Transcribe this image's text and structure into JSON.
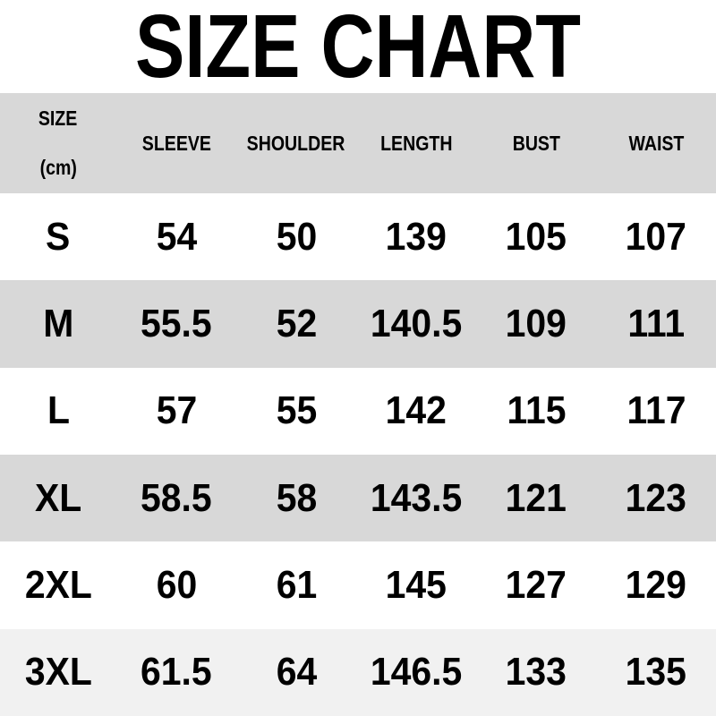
{
  "title": "SIZE CHART",
  "table": {
    "size_label": "SIZE",
    "unit_note": "(cm)",
    "columns": [
      "SLEEVE",
      "SHOULDER",
      "LENGTH",
      "BUST",
      "WAIST"
    ],
    "rows": [
      {
        "size": "S",
        "values": [
          "54",
          "50",
          "139",
          "105",
          "107"
        ]
      },
      {
        "size": "M",
        "values": [
          "55.5",
          "52",
          "140.5",
          "109",
          "111"
        ]
      },
      {
        "size": "L",
        "values": [
          "57",
          "55",
          "142",
          "115",
          "117"
        ]
      },
      {
        "size": "XL",
        "values": [
          "58.5",
          "58",
          "143.5",
          "121",
          "123"
        ]
      },
      {
        "size": "2XL",
        "values": [
          "60",
          "61",
          "145",
          "127",
          "129"
        ]
      },
      {
        "size": "3XL",
        "values": [
          "61.5",
          "64",
          "146.5",
          "133",
          "135"
        ]
      }
    ]
  },
  "colors": {
    "header_bg": "#d8d8d8",
    "alt_row_bg": "#d8d8d8",
    "row_bg": "#ffffff",
    "last_row_bg": "#f1f1f1",
    "text": "#000000"
  },
  "chart_data": {
    "type": "table",
    "title": "SIZE CHART",
    "unit": "cm",
    "columns": [
      "SIZE",
      "SLEEVE",
      "SHOULDER",
      "LENGTH",
      "BUST",
      "WAIST"
    ],
    "rows": [
      [
        "S",
        54,
        50,
        139,
        105,
        107
      ],
      [
        "M",
        55.5,
        52,
        140.5,
        109,
        111
      ],
      [
        "L",
        57,
        55,
        142,
        115,
        117
      ],
      [
        "XL",
        58.5,
        58,
        143.5,
        121,
        123
      ],
      [
        "2XL",
        60,
        61,
        145,
        127,
        129
      ],
      [
        "3XL",
        61.5,
        64,
        146.5,
        133,
        135
      ]
    ]
  }
}
